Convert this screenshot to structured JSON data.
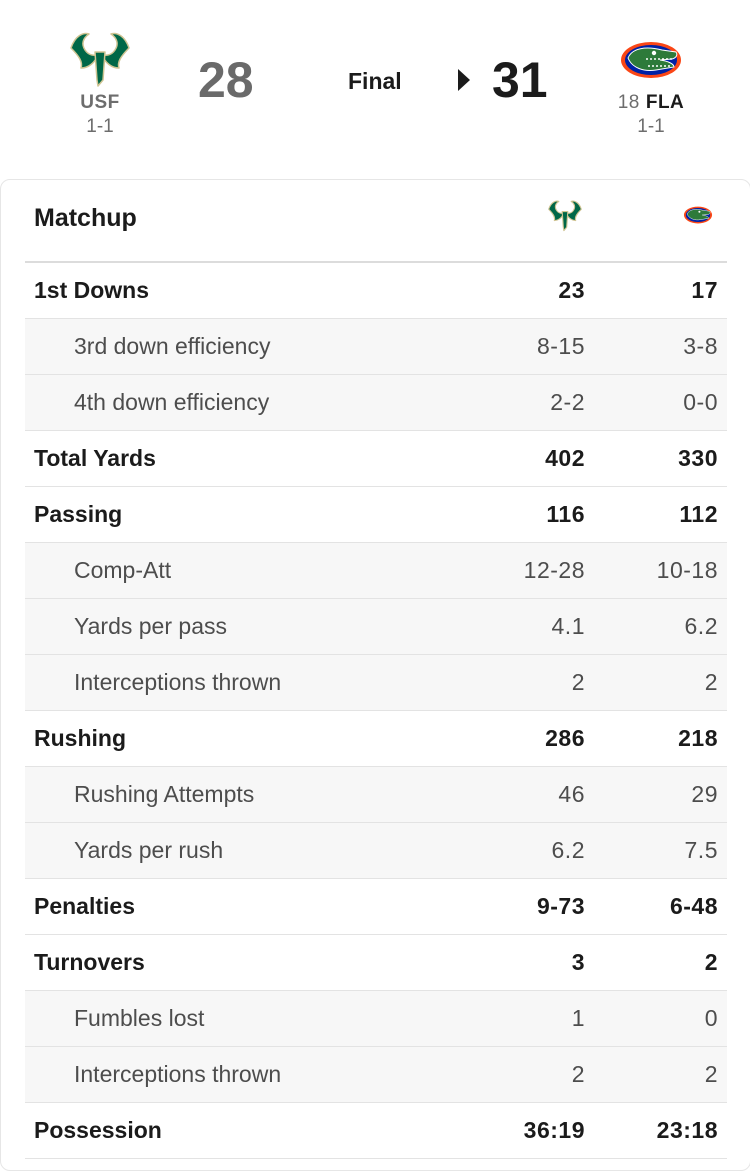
{
  "game": {
    "status": "Final",
    "away": {
      "abbr": "USF",
      "record": "1-1",
      "score": "28"
    },
    "home": {
      "rank": "18",
      "abbr": "FLA",
      "record": "1-1",
      "score": "31"
    }
  },
  "colors": {
    "usf_green": "#006747",
    "usf_gold": "#cfc493",
    "fla_orange": "#fa4616",
    "fla_blue": "#0021a5",
    "gator_green": "#2d7a3a"
  },
  "matchup": {
    "title": "Matchup",
    "rows": [
      {
        "type": "main",
        "label": "1st Downs",
        "away": "23",
        "home": "17"
      },
      {
        "type": "sub",
        "label": "3rd down efficiency",
        "away": "8-15",
        "home": "3-8"
      },
      {
        "type": "sub",
        "label": "4th down efficiency",
        "away": "2-2",
        "home": "0-0"
      },
      {
        "type": "main",
        "label": "Total Yards",
        "away": "402",
        "home": "330"
      },
      {
        "type": "main",
        "label": "Passing",
        "away": "116",
        "home": "112"
      },
      {
        "type": "sub",
        "label": "Comp-Att",
        "away": "12-28",
        "home": "10-18"
      },
      {
        "type": "sub",
        "label": "Yards per pass",
        "away": "4.1",
        "home": "6.2"
      },
      {
        "type": "sub",
        "label": "Interceptions thrown",
        "away": "2",
        "home": "2"
      },
      {
        "type": "main",
        "label": "Rushing",
        "away": "286",
        "home": "218"
      },
      {
        "type": "sub",
        "label": "Rushing Attempts",
        "away": "46",
        "home": "29"
      },
      {
        "type": "sub",
        "label": "Yards per rush",
        "away": "6.2",
        "home": "7.5"
      },
      {
        "type": "main",
        "label": "Penalties",
        "away": "9-73",
        "home": "6-48"
      },
      {
        "type": "main",
        "label": "Turnovers",
        "away": "3",
        "home": "2"
      },
      {
        "type": "sub",
        "label": "Fumbles lost",
        "away": "1",
        "home": "0"
      },
      {
        "type": "sub",
        "label": "Interceptions thrown",
        "away": "2",
        "home": "2"
      },
      {
        "type": "main",
        "label": "Possession",
        "away": "36:19",
        "home": "23:18"
      }
    ]
  }
}
